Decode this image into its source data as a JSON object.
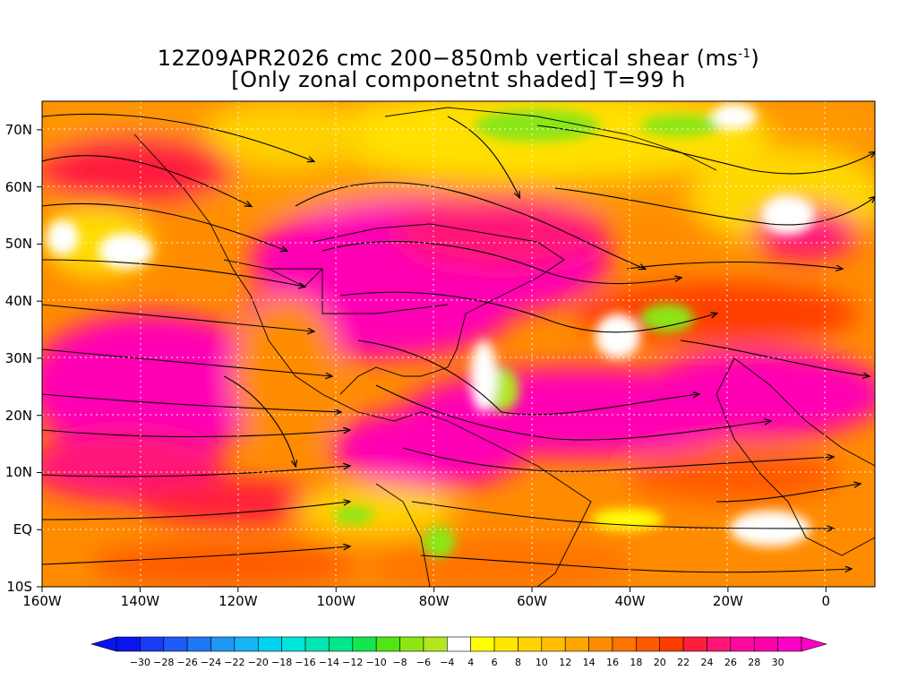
{
  "title": {
    "line1_prefix": "12Z09APR2026 cmc 200−850mb vertical shear (ms",
    "line1_sup": "-1",
    "line1_suffix": ")",
    "line2": "[Only zonal componetnt shaded] T=99 h"
  },
  "axes": {
    "lat_labels": [
      "70N",
      "60N",
      "50N",
      "40N",
      "30N",
      "20N",
      "10N",
      "EQ",
      "10S"
    ],
    "lat_values": [
      70,
      60,
      50,
      40,
      30,
      20,
      10,
      0,
      -10
    ],
    "lon_labels": [
      "160W",
      "140W",
      "120W",
      "100W",
      "80W",
      "60W",
      "40W",
      "20W",
      "0"
    ],
    "lon_values": [
      -160,
      -140,
      -120,
      -100,
      -80,
      -60,
      -40,
      -20,
      0
    ],
    "lon_range": [
      -160,
      10
    ],
    "lat_range": [
      -10,
      75
    ],
    "grid": "dotted"
  },
  "colorbar": {
    "labels": [
      "-30",
      "-28",
      "-26",
      "-24",
      "-22",
      "-20",
      "-18",
      "-16",
      "-14",
      "-12",
      "-10",
      "-8",
      "-6",
      "-4",
      "4",
      "6",
      "8",
      "10",
      "12",
      "14",
      "16",
      "18",
      "20",
      "22",
      "24",
      "26",
      "28",
      "30"
    ],
    "colors": [
      "#0a14f0",
      "#1a3cf5",
      "#1e5af5",
      "#1e78f5",
      "#1e96f5",
      "#14b4f5",
      "#00d2f0",
      "#00e6dc",
      "#00e6b4",
      "#00e68c",
      "#14e650",
      "#50e614",
      "#8ce614",
      "#b4e61e",
      "#ffffff",
      "#ffff00",
      "#ffe600",
      "#ffd200",
      "#ffbe00",
      "#ffa500",
      "#ff8c00",
      "#ff7300",
      "#ff5a00",
      "#ff3c00",
      "#ff1e3c",
      "#ff1478",
      "#ff0aa0",
      "#ff00aa",
      "#ff00c8"
    ]
  }
}
